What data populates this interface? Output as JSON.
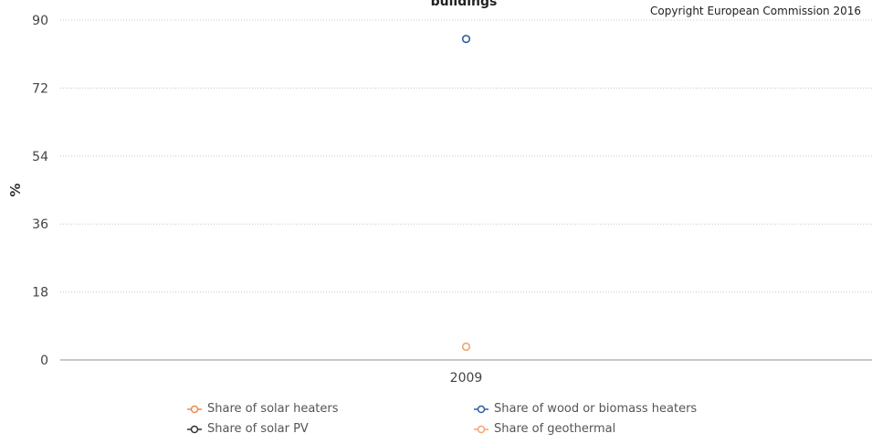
{
  "chart_data": {
    "type": "scatter",
    "title": "buildings",
    "credit": "Copyright European Commission 2016",
    "ylabel": "%",
    "xlabel": "",
    "categories": [
      "2009"
    ],
    "ylim": [
      0,
      90
    ],
    "yticks": [
      0,
      18,
      36,
      54,
      72,
      90
    ],
    "grid": true,
    "legend_position": "bottom",
    "series": [
      {
        "name": "Share of solar heaters",
        "color": "#f08a4b",
        "values": [
          null
        ]
      },
      {
        "name": "Share of wood or biomass heaters",
        "color": "#2f5f9b",
        "values": [
          85
        ]
      },
      {
        "name": "Share of solar PV",
        "color": "#333333",
        "values": [
          null
        ]
      },
      {
        "name": "Share of geothermal",
        "color": "#f3a46f",
        "values": [
          3.5
        ]
      }
    ]
  }
}
